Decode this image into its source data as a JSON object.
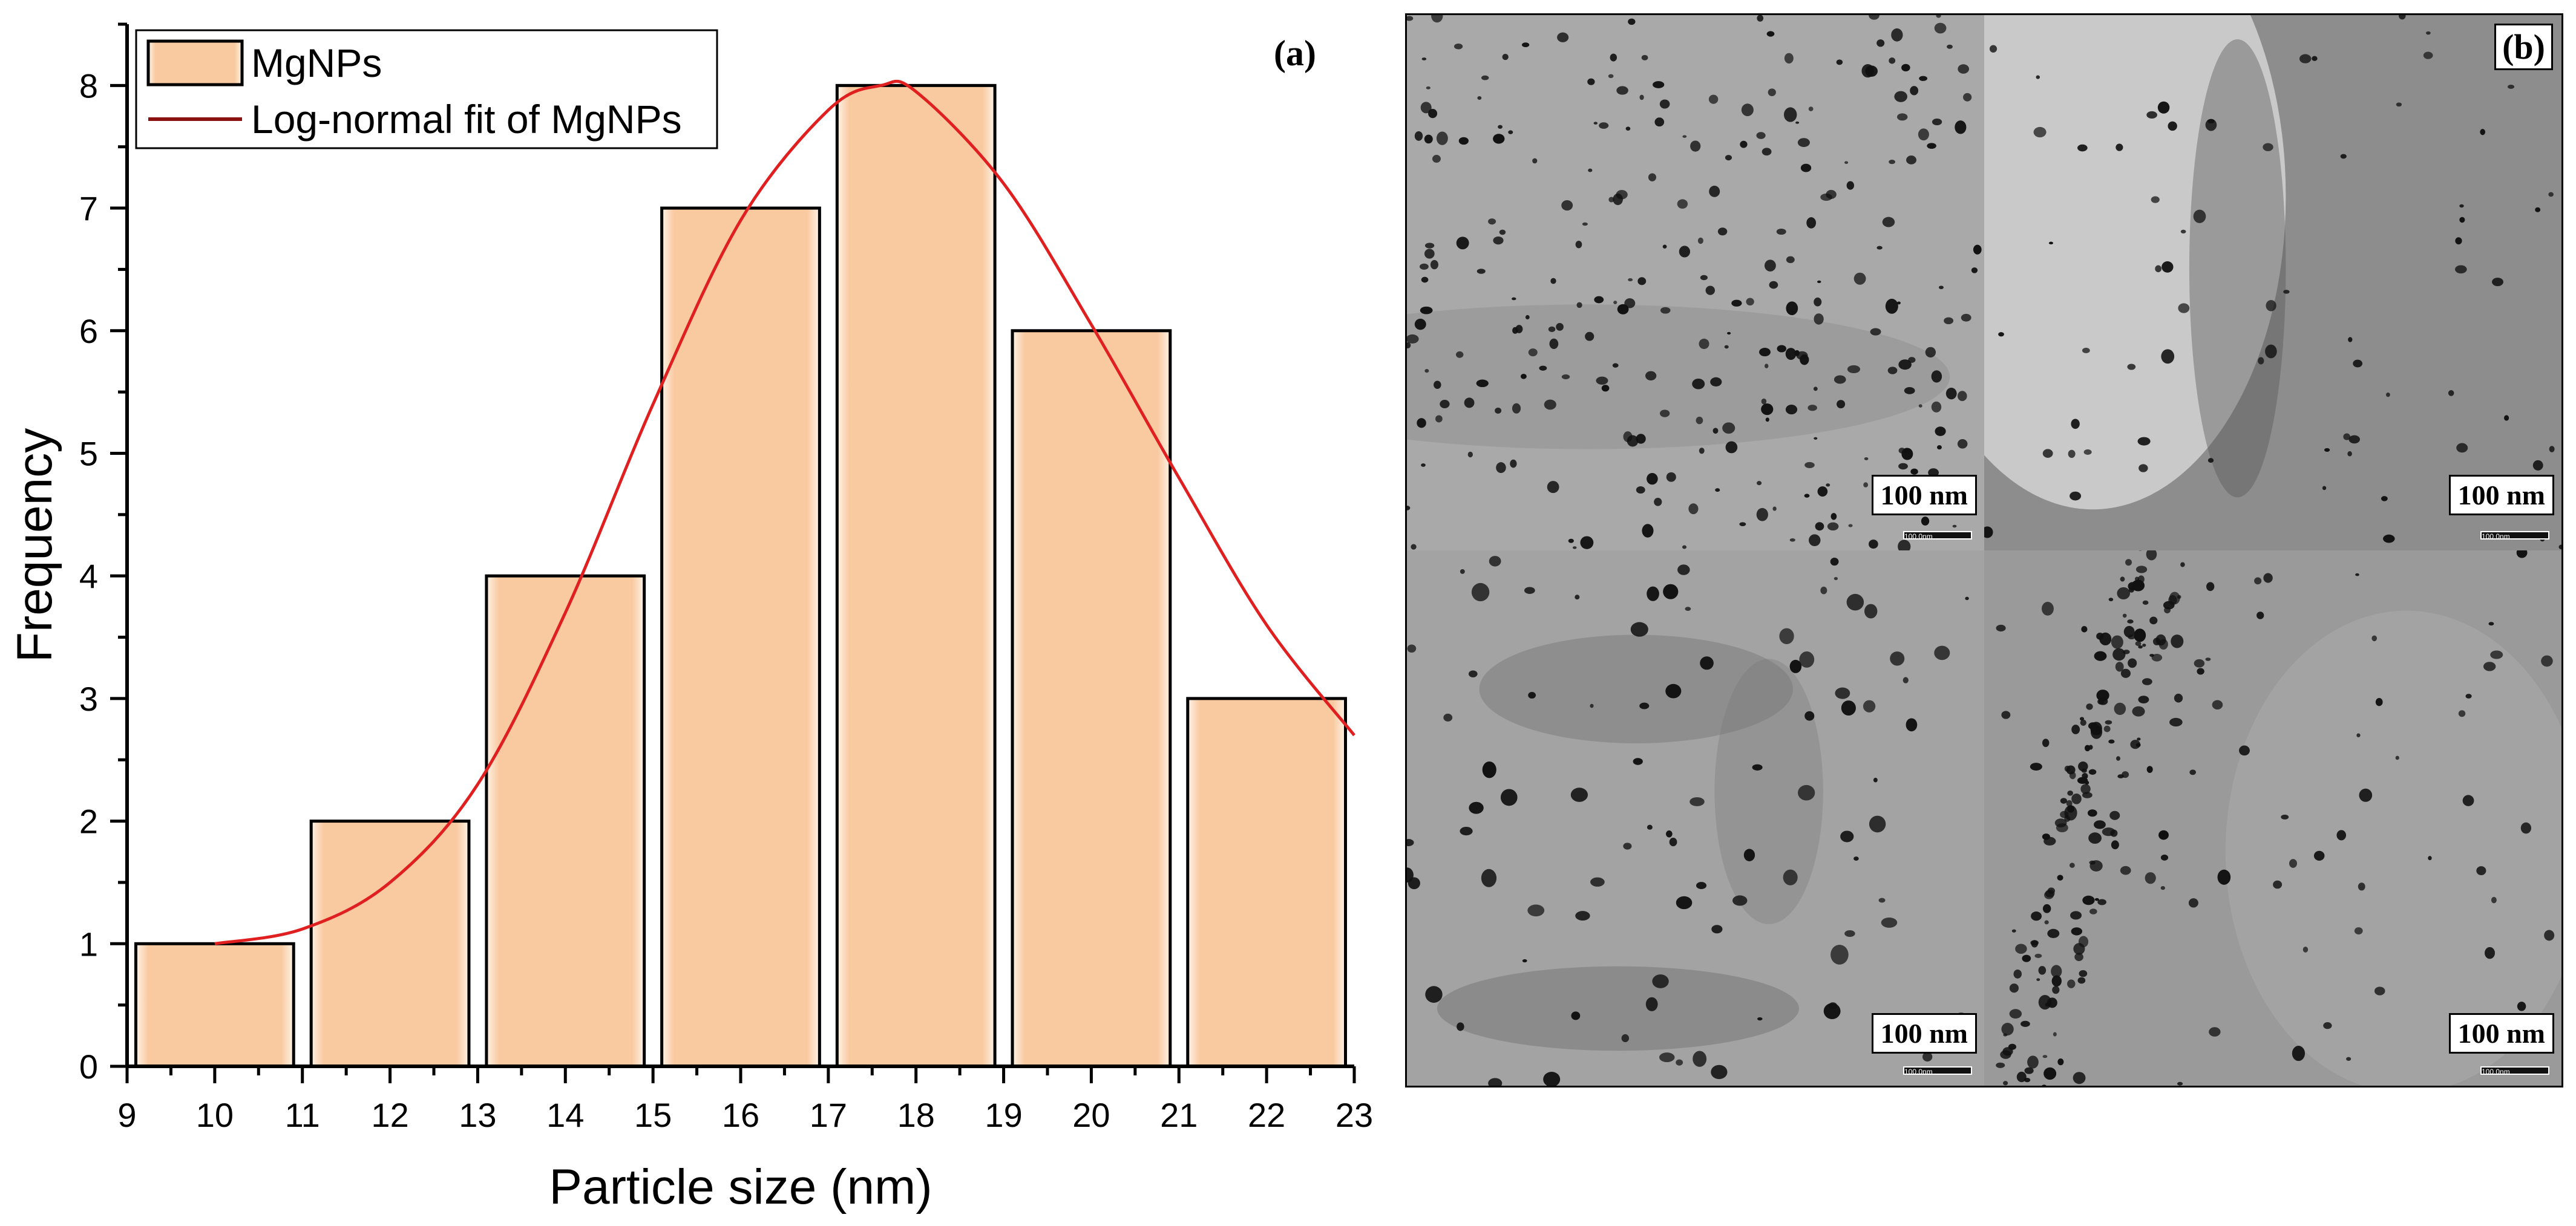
{
  "chart_data": {
    "type": "bar",
    "panel_label": "(a)",
    "xlabel": "Particle size (nm)",
    "ylabel": "Frequency",
    "xlim": [
      9,
      23
    ],
    "ylim": [
      0,
      8.5
    ],
    "x_ticks": [
      9,
      10,
      11,
      12,
      13,
      14,
      15,
      16,
      17,
      18,
      19,
      20,
      21,
      22,
      23
    ],
    "y_ticks": [
      0,
      1,
      2,
      3,
      4,
      5,
      6,
      7,
      8
    ],
    "bins": [
      {
        "from": 9.1,
        "to": 10.9,
        "value": 1
      },
      {
        "from": 11.1,
        "to": 12.9,
        "value": 2
      },
      {
        "from": 13.1,
        "to": 14.9,
        "value": 4
      },
      {
        "from": 15.1,
        "to": 16.9,
        "value": 7
      },
      {
        "from": 17.1,
        "to": 18.9,
        "value": 8
      },
      {
        "from": 19.1,
        "to": 20.9,
        "value": 6
      },
      {
        "from": 21.1,
        "to": 22.9,
        "value": 3
      }
    ],
    "series": [
      {
        "name": "MgNPs",
        "kind": "bar",
        "color": "#f9c9a0"
      },
      {
        "name": "Log-normal fit of MgNPs",
        "kind": "line",
        "color": "#e02020"
      }
    ],
    "fit_curve": {
      "x": [
        10,
        11,
        12,
        13,
        14,
        15,
        16,
        17,
        17.6,
        18,
        19,
        20,
        21,
        22,
        23
      ],
      "y": [
        1.0,
        1.12,
        1.5,
        2.3,
        3.7,
        5.4,
        6.9,
        7.8,
        8.0,
        7.95,
        7.2,
        6.05,
        4.8,
        3.6,
        2.7
      ]
    },
    "legend_position": "top-left",
    "grid": false
  },
  "tem": {
    "panel_label": "(b)",
    "tiles": [
      {
        "scale_label": "100 nm",
        "tiny_label": "100.0nm"
      },
      {
        "scale_label": "100 nm",
        "tiny_label": "100.0nm"
      },
      {
        "scale_label": "100 nm",
        "tiny_label": "100.0nm"
      },
      {
        "scale_label": "100 nm",
        "tiny_label": "100.0nm"
      }
    ]
  }
}
